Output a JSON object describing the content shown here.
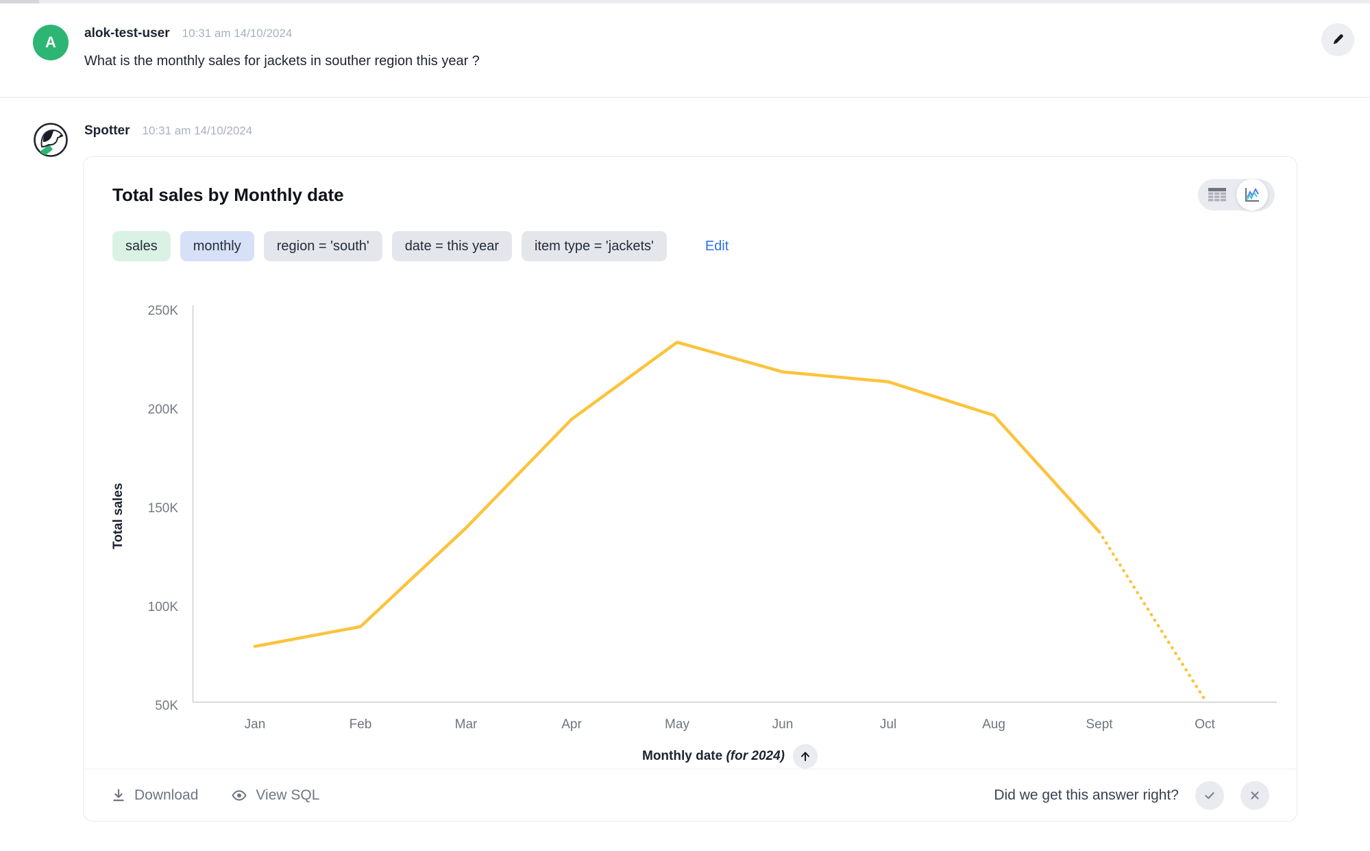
{
  "user_message": {
    "avatar_letter": "A",
    "username": "alok-test-user",
    "timestamp": "10:31 am 14/10/2024",
    "message": "What is the monthly sales for jackets in souther region this year ?"
  },
  "bot_message": {
    "name": "Spotter",
    "timestamp": "10:31 am 14/10/2024"
  },
  "card": {
    "title": "Total sales by Monthly date",
    "view_toggle": {
      "options": [
        "table",
        "chart"
      ],
      "selected": "chart"
    },
    "chips": [
      {
        "label": "sales",
        "kind": "measure"
      },
      {
        "label": "monthly",
        "kind": "bucket"
      },
      {
        "label": "region = 'south'",
        "kind": "filter"
      },
      {
        "label": "date = this year",
        "kind": "filter"
      },
      {
        "label": "item type = 'jackets'",
        "kind": "filter"
      }
    ],
    "edit_label": "Edit",
    "axis": {
      "xlabel_main": "Monthly date",
      "xlabel_suffix": "(for 2024)"
    },
    "footer": {
      "download_label": "Download",
      "view_sql_label": "View SQL",
      "feedback_prompt": "Did we get this answer right?"
    }
  },
  "chart_data": {
    "type": "line",
    "title": "Total sales by Monthly date",
    "x": [
      "Jan",
      "Feb",
      "Mar",
      "Apr",
      "May",
      "Jun",
      "Jul",
      "Aug",
      "Sept",
      "Oct"
    ],
    "series": [
      {
        "name": "Total sales",
        "values": [
          80000,
          90000,
          140000,
          195000,
          234000,
          219000,
          214000,
          197000,
          138000,
          53000
        ]
      }
    ],
    "dotted_from_index": 8,
    "ylabel": "Total sales",
    "xlabel": "Monthly date (for 2024)",
    "yticks": [
      {
        "label": "250K",
        "value": 250000
      },
      {
        "label": "200K",
        "value": 200000
      },
      {
        "label": "150K",
        "value": 150000
      },
      {
        "label": "100K",
        "value": 100000
      },
      {
        "label": "50K",
        "value": 50000
      }
    ],
    "ylim": [
      50000,
      250000
    ],
    "grid": false,
    "legend": "none",
    "line_color": "#fcc33c",
    "axis_color": "#d8dade",
    "tick_color": "#75797f"
  },
  "colors": {
    "user_avatar": "#2cb573",
    "link_blue": "#2f6fed",
    "chip_green_bg": "#d9f2e4",
    "chip_blue_bg": "#d6e0f7",
    "chip_gray_bg": "#e4e6eb"
  }
}
